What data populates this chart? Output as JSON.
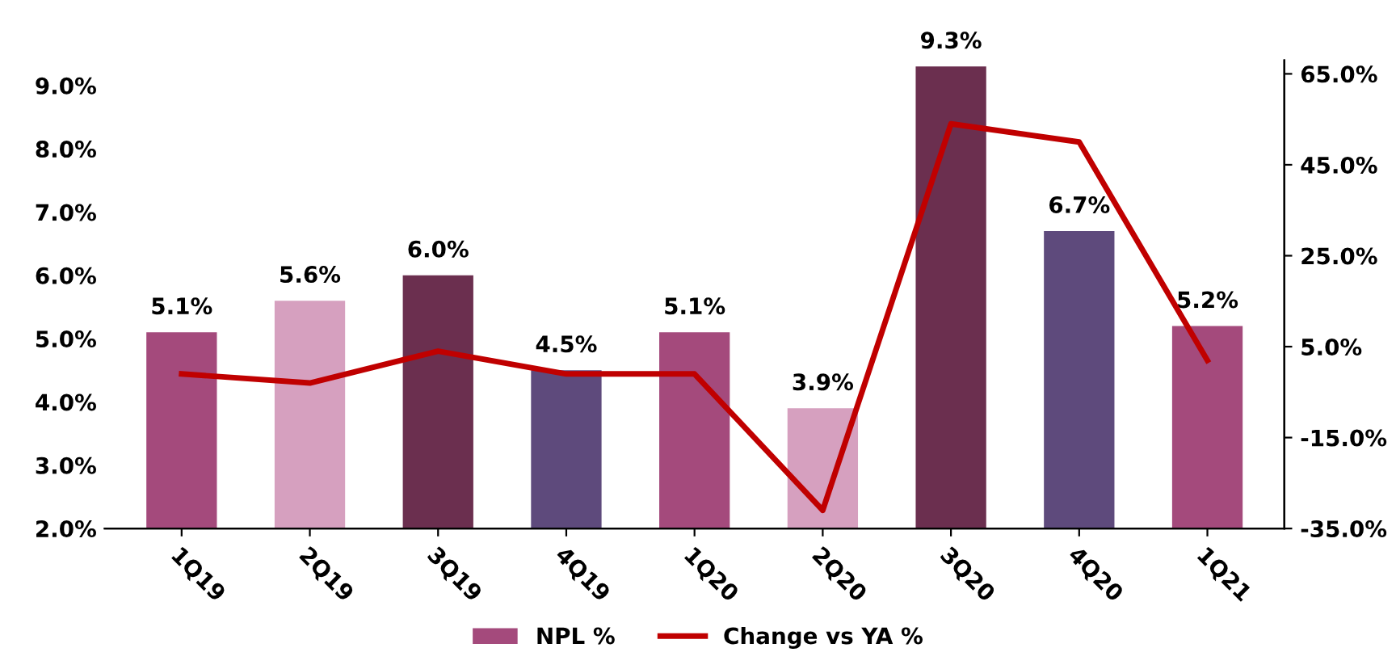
{
  "chart_data": {
    "type": "bar",
    "categories": [
      "1Q19",
      "2Q19",
      "3Q19",
      "4Q19",
      "1Q20",
      "2Q20",
      "3Q20",
      "4Q20",
      "1Q21"
    ],
    "series": [
      {
        "name": "NPL %",
        "color": "#a44a7c",
        "colors": [
          "#a44a7c",
          "#d6a0bf",
          "#6b2f4f",
          "#5e4a7c",
          "#a44a7c",
          "#d6a0bf",
          "#6b2f4f",
          "#5e4a7c",
          "#a44a7c"
        ],
        "values": [
          5.1,
          5.6,
          6.0,
          4.5,
          5.1,
          3.9,
          9.3,
          6.7,
          5.2
        ],
        "value_labels": [
          "5.1%",
          "5.6%",
          "6.0%",
          "4.5%",
          "5.1%",
          "3.9%",
          "9.3%",
          "6.7%",
          "5.2%"
        ]
      },
      {
        "name": "Change vs YA %",
        "type": "line",
        "color": "#c00000",
        "axis": "y2",
        "values": [
          -1,
          -3,
          4,
          -1,
          -1,
          -31,
          54,
          50,
          2
        ]
      }
    ],
    "ylim": [
      2.0,
      9.4
    ],
    "yticks": [
      {
        "value": 2,
        "label": "2.0%"
      },
      {
        "value": 3,
        "label": "3.0%"
      },
      {
        "value": 4,
        "label": "4.0%"
      },
      {
        "value": 5,
        "label": "5.0%"
      },
      {
        "value": 6,
        "label": "6.0%"
      },
      {
        "value": 7,
        "label": "7.0%"
      },
      {
        "value": 8,
        "label": "8.0%"
      },
      {
        "value": 9,
        "label": "9.0%"
      }
    ],
    "y2lim": [
      -35,
      68
    ],
    "y2ticks": [
      {
        "value": -35,
        "label": "-35.0%"
      },
      {
        "value": -15,
        "label": "-15.0%"
      },
      {
        "value": 5,
        "label": "5.0%"
      },
      {
        "value": 25,
        "label": "25.0%"
      },
      {
        "value": 45,
        "label": "45.0%"
      },
      {
        "value": 65,
        "label": "65.0%"
      }
    ],
    "grid": false,
    "legend": "bottom",
    "marker": "none",
    "line_style": "solid"
  }
}
